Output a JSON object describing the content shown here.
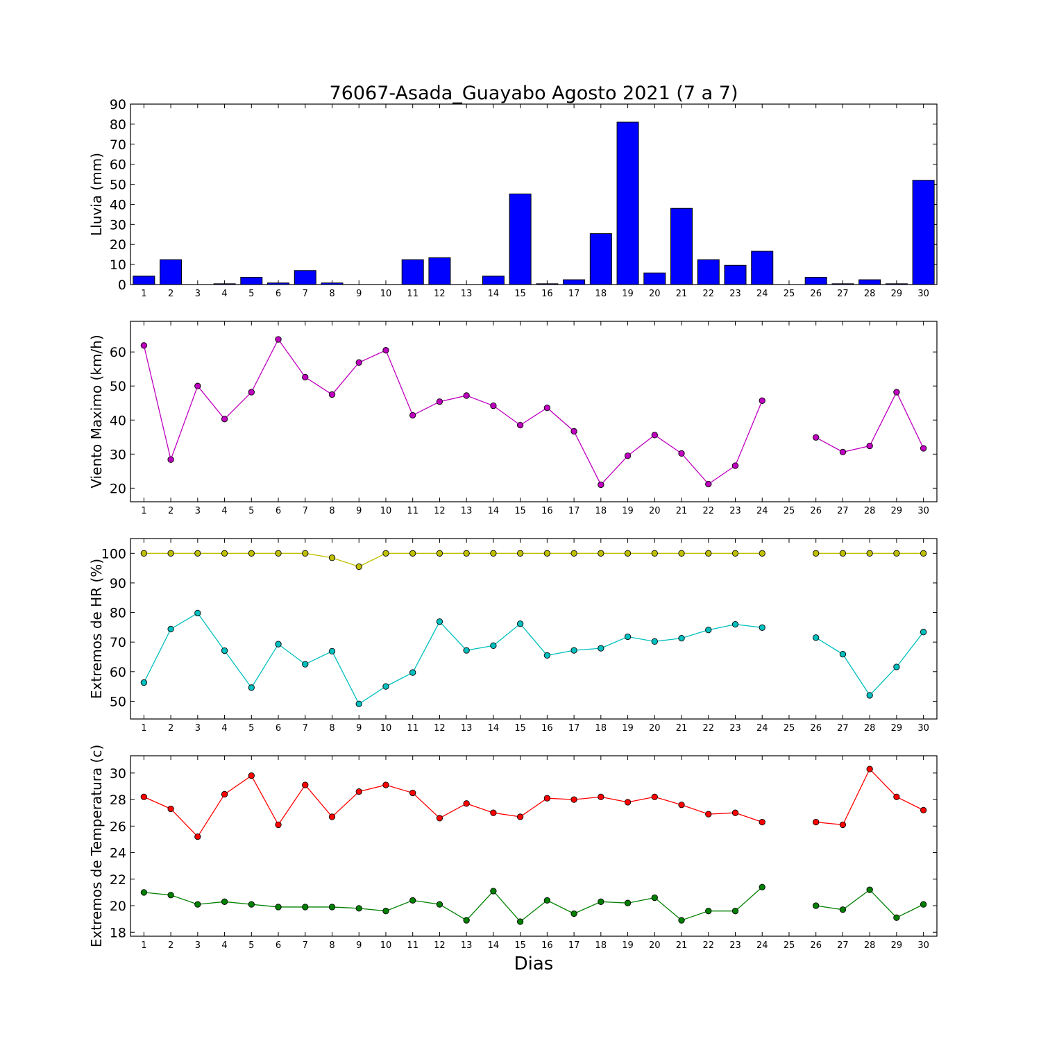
{
  "title": "76067-Asada_Guayabo Agosto 2021  (7 a 7)",
  "xlabel": "Dias",
  "days": [
    1,
    2,
    3,
    4,
    5,
    6,
    7,
    8,
    9,
    10,
    11,
    12,
    13,
    14,
    15,
    16,
    17,
    18,
    19,
    20,
    21,
    22,
    23,
    24,
    25,
    26,
    27,
    28,
    29,
    30
  ],
  "chart_data": [
    {
      "type": "bar",
      "ylabel": "Lluvia (mm)",
      "ylim": [
        0,
        90
      ],
      "yticks": [
        0,
        10,
        20,
        30,
        40,
        50,
        60,
        70,
        80,
        90
      ],
      "x": [
        1,
        2,
        3,
        4,
        5,
        6,
        7,
        8,
        9,
        10,
        11,
        12,
        13,
        14,
        15,
        16,
        17,
        18,
        19,
        20,
        21,
        22,
        23,
        24,
        25,
        26,
        27,
        28,
        29,
        30
      ],
      "series": [
        {
          "color": "#0000ff",
          "values": [
            4.2,
            12.4,
            0,
            0.4,
            3.6,
            0.8,
            7.0,
            0.8,
            0,
            0,
            12.4,
            13.4,
            0,
            4.2,
            45.2,
            0.4,
            2.4,
            25.4,
            81.0,
            5.8,
            38.0,
            12.4,
            9.6,
            16.6,
            0,
            3.6,
            0.4,
            2.4,
            0.4,
            52.0
          ]
        }
      ]
    },
    {
      "type": "line",
      "ylabel": "Viento Maximo (km/h)",
      "ylim": [
        16,
        69
      ],
      "yticks": [
        20,
        30,
        40,
        50,
        60
      ],
      "x": [
        1,
        2,
        3,
        4,
        5,
        6,
        7,
        8,
        9,
        10,
        11,
        12,
        13,
        14,
        15,
        16,
        17,
        18,
        19,
        20,
        21,
        22,
        23,
        24,
        25,
        26,
        27,
        28,
        29,
        30
      ],
      "series": [
        {
          "color": "#bf00bf",
          "values": [
            61.9,
            28.4,
            50.0,
            40.3,
            48.2,
            63.7,
            52.6,
            47.5,
            56.9,
            60.5,
            41.4,
            45.4,
            47.2,
            44.2,
            38.5,
            43.6,
            36.7,
            21.0,
            29.5,
            35.6,
            30.2,
            21.2,
            26.6,
            45.7,
            null,
            34.9,
            30.6,
            32.4,
            48.2,
            31.7
          ]
        }
      ]
    },
    {
      "type": "line",
      "ylabel": "Extremos de HR (%)",
      "ylim": [
        44,
        105
      ],
      "yticks": [
        50,
        60,
        70,
        80,
        90,
        100
      ],
      "x": [
        1,
        2,
        3,
        4,
        5,
        6,
        7,
        8,
        9,
        10,
        11,
        12,
        13,
        14,
        15,
        16,
        17,
        18,
        19,
        20,
        21,
        22,
        23,
        24,
        25,
        26,
        27,
        28,
        29,
        30
      ],
      "series": [
        {
          "color": "#bfbf00",
          "values": [
            100,
            100,
            100,
            100,
            100,
            100,
            100,
            98.5,
            95.5,
            100,
            100,
            100,
            100,
            100,
            100,
            100,
            100,
            100,
            100,
            100,
            100,
            100,
            100,
            100,
            null,
            100,
            100,
            100,
            100,
            100
          ]
        },
        {
          "color": "#00bfbf",
          "values": [
            56.3,
            74.4,
            79.8,
            67.1,
            54.6,
            69.3,
            62.5,
            66.9,
            49.1,
            55.0,
            59.7,
            76.9,
            67.2,
            68.8,
            76.2,
            65.5,
            67.2,
            67.9,
            71.8,
            70.2,
            71.3,
            74.1,
            76.0,
            74.9,
            null,
            71.5,
            65.9,
            52.0,
            61.6,
            73.4
          ]
        }
      ]
    },
    {
      "type": "line",
      "ylabel": "Extremos de Temperatura (c)",
      "ylim": [
        17.7,
        31.3
      ],
      "yticks": [
        18,
        20,
        22,
        24,
        26,
        28,
        30
      ],
      "x": [
        1,
        2,
        3,
        4,
        5,
        6,
        7,
        8,
        9,
        10,
        11,
        12,
        13,
        14,
        15,
        16,
        17,
        18,
        19,
        20,
        21,
        22,
        23,
        24,
        25,
        26,
        27,
        28,
        29,
        30
      ],
      "series": [
        {
          "color": "#ff0000",
          "values": [
            28.2,
            27.3,
            25.2,
            28.4,
            29.8,
            26.1,
            29.1,
            26.7,
            28.6,
            29.1,
            28.5,
            26.6,
            27.7,
            27.0,
            26.7,
            28.1,
            28.0,
            28.2,
            27.8,
            28.2,
            27.6,
            26.9,
            27.0,
            26.3,
            null,
            26.3,
            26.1,
            30.3,
            28.2,
            27.2
          ]
        },
        {
          "color": "#008000",
          "values": [
            21.0,
            20.8,
            20.1,
            20.3,
            20.1,
            19.9,
            19.9,
            19.9,
            19.8,
            19.6,
            20.4,
            20.1,
            18.9,
            21.1,
            18.8,
            20.4,
            19.4,
            20.3,
            20.2,
            20.6,
            18.9,
            19.6,
            19.6,
            21.4,
            null,
            20.0,
            19.7,
            21.2,
            19.1,
            20.1
          ]
        }
      ]
    }
  ]
}
